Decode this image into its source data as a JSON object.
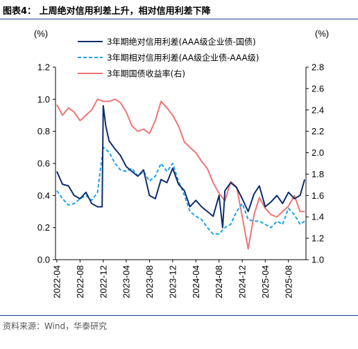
{
  "figure": {
    "title": "图表4：  上周绝对信用利差上升，相对信用利差下降",
    "source": "资料来源：Wind，华泰研究"
  },
  "chart_data": {
    "type": "line",
    "left_unit": "(%)",
    "right_unit": "(%)",
    "ylim_left": [
      0.0,
      1.2
    ],
    "ylim_right": [
      1.0,
      2.8
    ],
    "yticks_left": [
      "0.0",
      "0.2",
      "0.4",
      "0.6",
      "0.8",
      "1.0",
      "1.2"
    ],
    "yticks_right": [
      "1.0",
      "1.2",
      "1.4",
      "1.6",
      "1.8",
      "2.0",
      "2.2",
      "2.4",
      "2.6",
      "2.8"
    ],
    "xticks": [
      "2022-04",
      "2022-08",
      "2022-12",
      "2023-04",
      "2023-08",
      "2023-12",
      "2024-04",
      "2024-08",
      "2024-12",
      "2025-04",
      "2025-08"
    ],
    "legend_position": "top-center",
    "grid": false,
    "series": [
      {
        "name": "3年期绝对信用利差(AAA级企业债-国债)",
        "axis": "left",
        "color": "#0d2c6c",
        "style": "solid",
        "x": [
          "2022-04",
          "2022-05",
          "2022-06",
          "2022-07",
          "2022-08",
          "2022-09",
          "2022-10",
          "2022-11",
          "2022-11-25",
          "2022-12",
          "2022-12-15",
          "2023-01",
          "2023-02",
          "2023-03",
          "2023-04",
          "2023-05",
          "2023-06",
          "2023-07",
          "2023-08",
          "2023-09",
          "2023-10",
          "2023-11",
          "2023-12",
          "2024-01",
          "2024-02",
          "2024-03",
          "2024-04",
          "2024-05",
          "2024-06",
          "2024-07",
          "2024-08",
          "2024-08-20",
          "2024-09",
          "2024-10",
          "2024-11",
          "2024-12",
          "2025-01",
          "2025-02",
          "2025-03",
          "2025-04",
          "2025-05",
          "2025-06",
          "2025-07",
          "2025-08",
          "2025-09",
          "2025-10",
          "2025-10-25"
        ],
        "values": [
          0.55,
          0.47,
          0.46,
          0.4,
          0.38,
          0.42,
          0.35,
          0.33,
          0.33,
          0.96,
          0.83,
          0.74,
          0.69,
          0.65,
          0.58,
          0.55,
          0.52,
          0.56,
          0.4,
          0.38,
          0.5,
          0.48,
          0.57,
          0.47,
          0.43,
          0.33,
          0.37,
          0.33,
          0.3,
          0.27,
          0.4,
          0.2,
          0.43,
          0.48,
          0.45,
          0.38,
          0.3,
          0.41,
          0.46,
          0.33,
          0.36,
          0.4,
          0.35,
          0.42,
          0.38,
          0.4,
          0.5
        ]
      },
      {
        "name": "3年期相对信用利差(AA级企业债-AAA级)",
        "axis": "left",
        "color": "#1aa3e8",
        "style": "dashed",
        "x": [
          "2022-04",
          "2022-05",
          "2022-06",
          "2022-07",
          "2022-08",
          "2022-09",
          "2022-10",
          "2022-11",
          "2022-12",
          "2023-01",
          "2023-02",
          "2023-03",
          "2023-04",
          "2023-05",
          "2023-06",
          "2023-07",
          "2023-08",
          "2023-09",
          "2023-10",
          "2023-11",
          "2023-12",
          "2024-01",
          "2024-02",
          "2024-03",
          "2024-04",
          "2024-05",
          "2024-06",
          "2024-07",
          "2024-08",
          "2024-09",
          "2024-10",
          "2024-11",
          "2024-12",
          "2025-01",
          "2025-02",
          "2025-03",
          "2025-04",
          "2025-05",
          "2025-06",
          "2025-07",
          "2025-08",
          "2025-09",
          "2025-10",
          "2025-10-25"
        ],
        "values": [
          0.43,
          0.38,
          0.34,
          0.35,
          0.38,
          0.4,
          0.37,
          0.42,
          0.7,
          0.67,
          0.6,
          0.56,
          0.55,
          0.57,
          0.52,
          0.55,
          0.49,
          0.52,
          0.6,
          0.55,
          0.6,
          0.49,
          0.4,
          0.3,
          0.27,
          0.25,
          0.2,
          0.16,
          0.16,
          0.2,
          0.22,
          0.3,
          0.35,
          0.25,
          0.24,
          0.24,
          0.22,
          0.2,
          0.24,
          0.22,
          0.32,
          0.28,
          0.22,
          0.24
        ]
      },
      {
        "name": "3年期国债收益率(右)",
        "axis": "right",
        "color": "#f07474",
        "style": "solid",
        "x": [
          "2022-04",
          "2022-05",
          "2022-06",
          "2022-07",
          "2022-08",
          "2022-09",
          "2022-10",
          "2022-11",
          "2022-12",
          "2023-01",
          "2023-02",
          "2023-03",
          "2023-04",
          "2023-05",
          "2023-06",
          "2023-07",
          "2023-08",
          "2023-09",
          "2023-10",
          "2023-11",
          "2023-12",
          "2024-01",
          "2024-02",
          "2024-03",
          "2024-04",
          "2024-05",
          "2024-06",
          "2024-07",
          "2024-08",
          "2024-09",
          "2024-10",
          "2024-11",
          "2024-12",
          "2025-01",
          "2025-02",
          "2025-03",
          "2025-04",
          "2025-05",
          "2025-06",
          "2025-07",
          "2025-08",
          "2025-09",
          "2025-10",
          "2025-10-25"
        ],
        "values": [
          2.45,
          2.35,
          2.42,
          2.38,
          2.3,
          2.35,
          2.4,
          2.5,
          2.48,
          2.48,
          2.5,
          2.47,
          2.38,
          2.25,
          2.2,
          2.22,
          2.18,
          2.3,
          2.48,
          2.42,
          2.35,
          2.25,
          2.1,
          2.05,
          2.0,
          1.92,
          1.85,
          1.72,
          1.62,
          1.55,
          1.73,
          1.68,
          1.4,
          1.1,
          1.42,
          1.58,
          1.48,
          1.42,
          1.4,
          1.45,
          1.5,
          1.6,
          1.45,
          1.45
        ]
      }
    ]
  }
}
